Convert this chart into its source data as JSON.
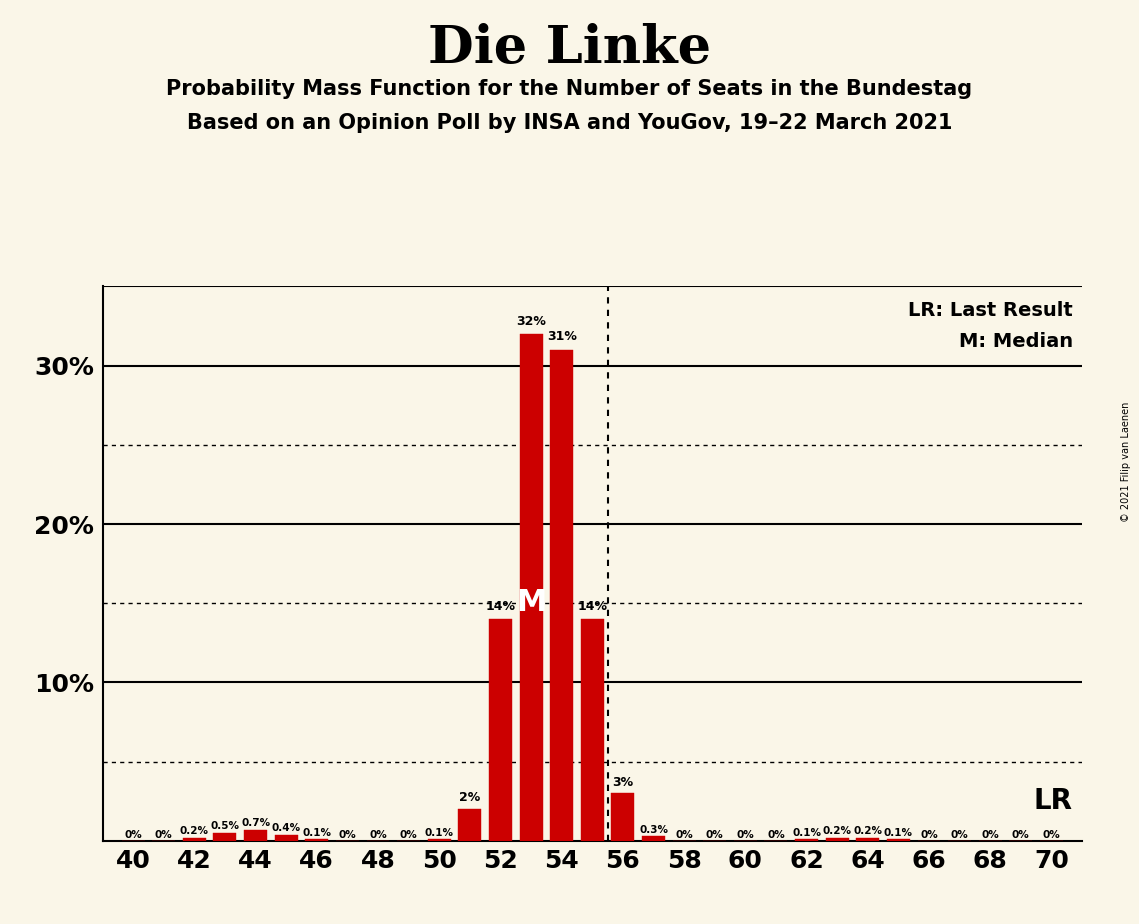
{
  "title": "Die Linke",
  "subtitle1": "Probability Mass Function for the Number of Seats in the Bundestag",
  "subtitle2": "Based on an Opinion Poll by INSA and YouGov, 19–22 March 2021",
  "copyright": "© 2021 Filip van Laenen",
  "x_min": 39,
  "x_max": 71,
  "y_min": 0,
  "y_max": 35,
  "background_color": "#faf6e8",
  "bar_color": "#cc0000",
  "bar_edge_color": "#cc0000",
  "seats": [
    40,
    41,
    42,
    43,
    44,
    45,
    46,
    47,
    48,
    49,
    50,
    51,
    52,
    53,
    54,
    55,
    56,
    57,
    58,
    59,
    60,
    61,
    62,
    63,
    64,
    65,
    66,
    67,
    68,
    69,
    70
  ],
  "probabilities": [
    0.0,
    0.0,
    0.2,
    0.5,
    0.7,
    0.4,
    0.1,
    0.0,
    0.0,
    0.0,
    0.1,
    2.0,
    14.0,
    32.0,
    31.0,
    14.0,
    3.0,
    0.3,
    0.0,
    0.0,
    0.0,
    0.0,
    0.1,
    0.2,
    0.2,
    0.1,
    0.0,
    0.0,
    0.0,
    0.0,
    0.0
  ],
  "labels": [
    "0%",
    "0%",
    "0.2%",
    "0.5%",
    "0.7%",
    "0.4%",
    "0.1%",
    "0%",
    "0%",
    "0%",
    "0.1%",
    "2%",
    "14%",
    "32%",
    "31%",
    "14%",
    "3%",
    "0.3%",
    "0%",
    "0%",
    "0%",
    "0%",
    "0.1%",
    "0.2%",
    "0.2%",
    "0.1%",
    "0%",
    "0%",
    "0%",
    "0%",
    "0%"
  ],
  "median_seat": 53,
  "last_result_seat": 55.5,
  "yticks_solid": [
    10,
    20,
    30
  ],
  "yticks_dotted": [
    5,
    15,
    25
  ],
  "ytick_labels_solid": [
    10,
    20,
    30
  ],
  "xticks": [
    40,
    42,
    44,
    46,
    48,
    50,
    52,
    54,
    56,
    58,
    60,
    62,
    64,
    66,
    68,
    70
  ],
  "lr_label": "LR",
  "lr_legend": "LR: Last Result",
  "m_legend": "M: Median"
}
